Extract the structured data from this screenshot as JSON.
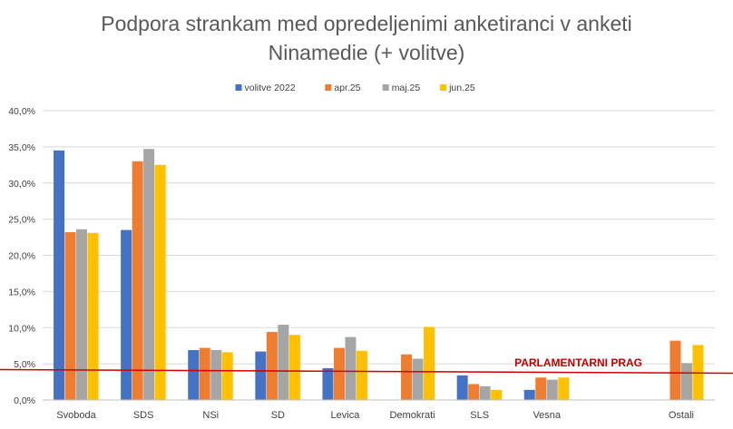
{
  "chart_data": {
    "type": "bar",
    "title_lines": [
      "Podpora strankam med opredeljenimi anketiranci v anketi",
      "Ninamedie (+ volitve)"
    ],
    "categories": [
      "Svoboda",
      "SDS",
      "NSi",
      "SD",
      "Levica",
      "Demokrati",
      "SLS",
      "Vesna",
      "",
      "Ostali"
    ],
    "series": [
      {
        "name": "volitve 2022",
        "color": "#4472c4",
        "values": [
          34.5,
          23.5,
          6.9,
          6.7,
          4.4,
          null,
          3.4,
          1.4,
          null,
          null
        ]
      },
      {
        "name": "apr.25",
        "color": "#ed7d31",
        "values": [
          23.2,
          33.0,
          7.2,
          9.4,
          7.2,
          6.3,
          2.2,
          3.1,
          null,
          8.2
        ]
      },
      {
        "name": "maj.25",
        "color": "#a5a5a5",
        "values": [
          23.6,
          34.7,
          6.9,
          10.4,
          8.7,
          5.7,
          1.9,
          2.8,
          null,
          5.1
        ]
      },
      {
        "name": "jun.25",
        "color": "#ffc000",
        "values": [
          23.1,
          32.5,
          6.6,
          9.0,
          6.8,
          10.1,
          1.4,
          3.1,
          null,
          7.6
        ]
      }
    ],
    "ylim": [
      0,
      40
    ],
    "yticks": [
      "0,0%",
      "5,0%",
      "10,0%",
      "15,0%",
      "20,0%",
      "25,0%",
      "30,0%",
      "35,0%",
      "40,0%"
    ],
    "ytick_values": [
      0,
      5,
      10,
      15,
      20,
      25,
      30,
      35,
      40
    ],
    "legend_position": "top-center",
    "grid": true,
    "annotation": {
      "label": "PARLAMENTARNI PRAG",
      "value_start": 4.2,
      "value_end": 3.7,
      "color": "#d00000"
    }
  }
}
